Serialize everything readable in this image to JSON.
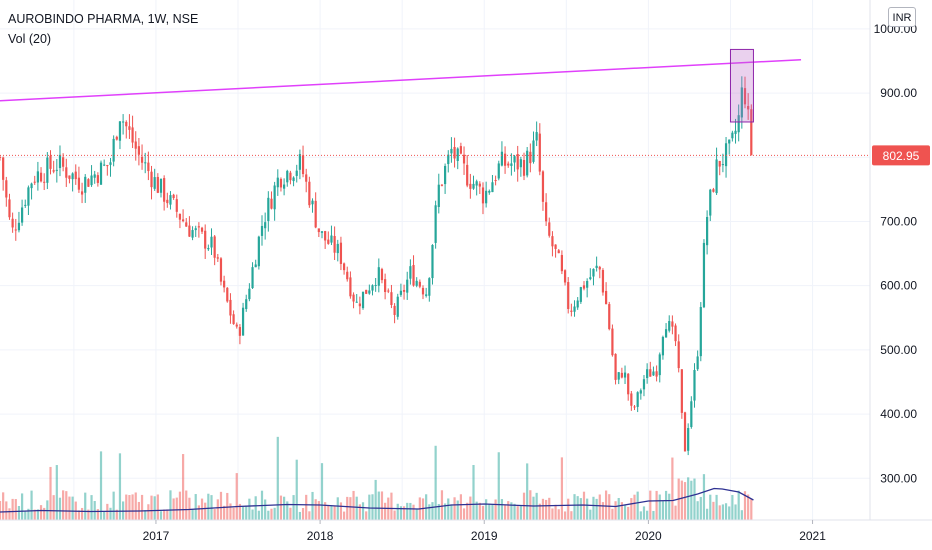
{
  "legend": {
    "symbol": "AUROBINDO PHARMA, 1W, NSE",
    "volume_indicator": "Vol (20)"
  },
  "currency_badge": "INR",
  "chart_data": {
    "type": "candlestick",
    "ylim": [
      235,
      1045
    ],
    "y_ticks": [
      "300.00",
      "400.00",
      "500.00",
      "600.00",
      "700.00",
      "800.00",
      "900.00",
      "1000.00"
    ],
    "y_tick_values": [
      300,
      400,
      500,
      600,
      700,
      800,
      900,
      1000
    ],
    "x_ticks": [
      "2017",
      "2018",
      "2019",
      "2020",
      "2021"
    ],
    "x_tick_values": [
      2017.0,
      2018.0,
      2019.0,
      2020.0,
      2021.0
    ],
    "xlim": [
      2016.05,
      2021.35
    ],
    "last_price": "802.95",
    "last_price_value": 802.95,
    "colors": {
      "up": "#26a69a",
      "down": "#ef5350",
      "trendline": "#e040fb",
      "vol_ma": "#2e3192",
      "last_price": "#ef5350"
    },
    "trendline": {
      "x": [
        2016.05,
        2020.93
      ],
      "y": [
        888,
        952
      ]
    },
    "highlight_box": {
      "x_start": 2020.5,
      "x_end": 2020.64,
      "y_low": 855,
      "y_high": 968
    },
    "price_anchors": {
      "x": [
        2016.05,
        2016.12,
        2016.25,
        2016.4,
        2016.55,
        2016.72,
        2016.78,
        2016.9,
        2017.0,
        2017.2,
        2017.35,
        2017.4,
        2017.5,
        2017.65,
        2017.75,
        2017.88,
        2018.0,
        2018.12,
        2018.22,
        2018.35,
        2018.45,
        2018.55,
        2018.65,
        2018.72,
        2018.8,
        2018.9,
        2019.0,
        2019.1,
        2019.25,
        2019.32,
        2019.37,
        2019.45,
        2019.52,
        2019.6,
        2019.7,
        2019.75,
        2019.8,
        2019.85,
        2019.9,
        2019.98,
        2020.05,
        2020.1,
        2020.17,
        2020.22,
        2020.3,
        2020.35,
        2020.42,
        2020.5,
        2020.55,
        2020.58,
        2020.6,
        2020.64
      ],
      "y": [
        800,
        680,
        770,
        790,
        760,
        790,
        870,
        800,
        760,
        690,
        660,
        600,
        520,
        700,
        770,
        790,
        680,
        650,
        570,
        620,
        555,
        620,
        590,
        750,
        810,
        770,
        740,
        790,
        790,
        825,
        690,
        640,
        560,
        600,
        630,
        560,
        450,
        470,
        400,
        460,
        470,
        550,
        510,
        340,
        500,
        700,
        790,
        810,
        860,
        920,
        870,
        802.95
      ]
    },
    "volume_ma": {
      "x": [
        2016.05,
        2016.3,
        2016.6,
        2016.9,
        2017.2,
        2017.5,
        2017.8,
        2018.0,
        2018.3,
        2018.6,
        2018.8,
        2019.0,
        2019.3,
        2019.6,
        2019.8,
        2020.0,
        2020.15,
        2020.3,
        2020.4,
        2020.45,
        2020.55,
        2020.64
      ],
      "y": [
        0.8,
        0.95,
        0.85,
        0.9,
        1.05,
        1.35,
        1.55,
        1.5,
        1.2,
        1.1,
        1.5,
        1.6,
        1.4,
        1.5,
        1.35,
        1.9,
        1.95,
        2.6,
        3.15,
        3.1,
        2.8,
        2.0
      ]
    }
  }
}
